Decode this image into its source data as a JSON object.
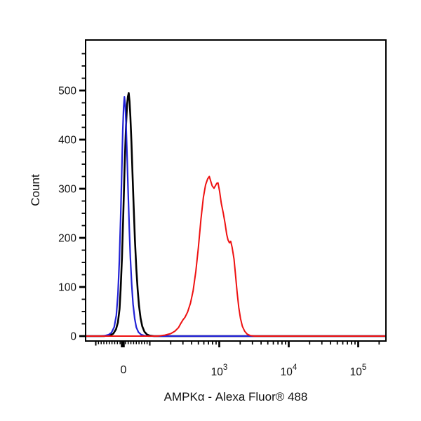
{
  "figure": {
    "background": "#ffffff"
  },
  "chart_data": {
    "type": "line",
    "subtype": "flow-cytometry-histogram-overlay",
    "title": "",
    "xlabel": "AMPKα - Alexa Fluor® 488",
    "ylabel": "Count",
    "x_scale": "biexponential",
    "x_linear_range": [
      -100,
      100
    ],
    "xlim": [
      -140,
      250000
    ],
    "ylim": [
      0,
      600
    ],
    "y_major_ticks": [
      0,
      100,
      200,
      300,
      400,
      500
    ],
    "y_minor_step": 25,
    "y_minor_max": 575,
    "x_labeled_ticks": [
      {
        "value": 0,
        "label": "0",
        "kind": "plain"
      },
      {
        "value": 1000,
        "base": "10",
        "exp": "3",
        "kind": "power"
      },
      {
        "value": 10000,
        "base": "10",
        "exp": "4",
        "kind": "power"
      },
      {
        "value": 100000,
        "base": "10",
        "exp": "5",
        "kind": "power"
      }
    ],
    "grid": false,
    "legend": "none",
    "frame_color": "#000000",
    "series": [
      {
        "name": "black-control",
        "color": "#000000",
        "peak": {
          "x": 22,
          "count": 495
        },
        "points": [
          [
            -140,
            0
          ],
          [
            -70,
            0
          ],
          [
            -55,
            1
          ],
          [
            -45,
            2
          ],
          [
            -35,
            5
          ],
          [
            -25,
            14
          ],
          [
            -18,
            28
          ],
          [
            -12,
            55
          ],
          [
            -8,
            95
          ],
          [
            -3,
            160
          ],
          [
            2,
            250
          ],
          [
            7,
            350
          ],
          [
            12,
            430
          ],
          [
            16,
            472
          ],
          [
            19,
            488
          ],
          [
            22,
            495
          ],
          [
            25,
            478
          ],
          [
            28,
            448
          ],
          [
            32,
            395
          ],
          [
            36,
            330
          ],
          [
            40,
            268
          ],
          [
            45,
            195
          ],
          [
            50,
            138
          ],
          [
            55,
            95
          ],
          [
            60,
            62
          ],
          [
            66,
            36
          ],
          [
            72,
            20
          ],
          [
            80,
            9
          ],
          [
            90,
            3
          ],
          [
            100,
            1
          ],
          [
            115,
            0
          ],
          [
            250000,
            0
          ]
        ]
      },
      {
        "name": "blue-control",
        "color": "#2222d6",
        "peak": {
          "x": 6,
          "count": 487
        },
        "points": [
          [
            -140,
            0
          ],
          [
            -80,
            0
          ],
          [
            -65,
            1
          ],
          [
            -52,
            3
          ],
          [
            -42,
            7
          ],
          [
            -32,
            18
          ],
          [
            -24,
            42
          ],
          [
            -18,
            85
          ],
          [
            -13,
            150
          ],
          [
            -8,
            240
          ],
          [
            -4,
            330
          ],
          [
            0,
            420
          ],
          [
            3,
            465
          ],
          [
            6,
            487
          ],
          [
            9,
            470
          ],
          [
            12,
            432
          ],
          [
            16,
            365
          ],
          [
            20,
            290
          ],
          [
            24,
            220
          ],
          [
            28,
            160
          ],
          [
            33,
            105
          ],
          [
            38,
            65
          ],
          [
            44,
            36
          ],
          [
            50,
            18
          ],
          [
            58,
            8
          ],
          [
            68,
            3
          ],
          [
            80,
            1
          ],
          [
            95,
            0
          ],
          [
            250000,
            0
          ]
        ]
      },
      {
        "name": "red-stained",
        "color": "#ee1111",
        "peak": {
          "x": 719,
          "count": 325
        },
        "points": [
          [
            -140,
            0
          ],
          [
            130,
            0
          ],
          [
            165,
            2
          ],
          [
            200,
            5
          ],
          [
            230,
            10
          ],
          [
            258,
            17
          ],
          [
            280,
            26
          ],
          [
            300,
            33
          ],
          [
            320,
            38
          ],
          [
            350,
            49
          ],
          [
            385,
            67
          ],
          [
            420,
            92
          ],
          [
            460,
            132
          ],
          [
            500,
            180
          ],
          [
            545,
            238
          ],
          [
            590,
            282
          ],
          [
            635,
            308
          ],
          [
            680,
            320
          ],
          [
            719,
            325
          ],
          [
            755,
            315
          ],
          [
            790,
            306
          ],
          [
            840,
            301
          ],
          [
            880,
            306
          ],
          [
            920,
            311
          ],
          [
            959,
            312
          ],
          [
            1010,
            295
          ],
          [
            1070,
            270
          ],
          [
            1140,
            251
          ],
          [
            1210,
            230
          ],
          [
            1280,
            207
          ],
          [
            1335,
            196
          ],
          [
            1400,
            190
          ],
          [
            1460,
            193
          ],
          [
            1530,
            181
          ],
          [
            1630,
            157
          ],
          [
            1720,
            122
          ],
          [
            1810,
            88
          ],
          [
            1910,
            58
          ],
          [
            2020,
            36
          ],
          [
            2150,
            20
          ],
          [
            2320,
            10
          ],
          [
            2520,
            4
          ],
          [
            2800,
            1
          ],
          [
            3200,
            0
          ],
          [
            250000,
            0
          ]
        ]
      }
    ]
  }
}
